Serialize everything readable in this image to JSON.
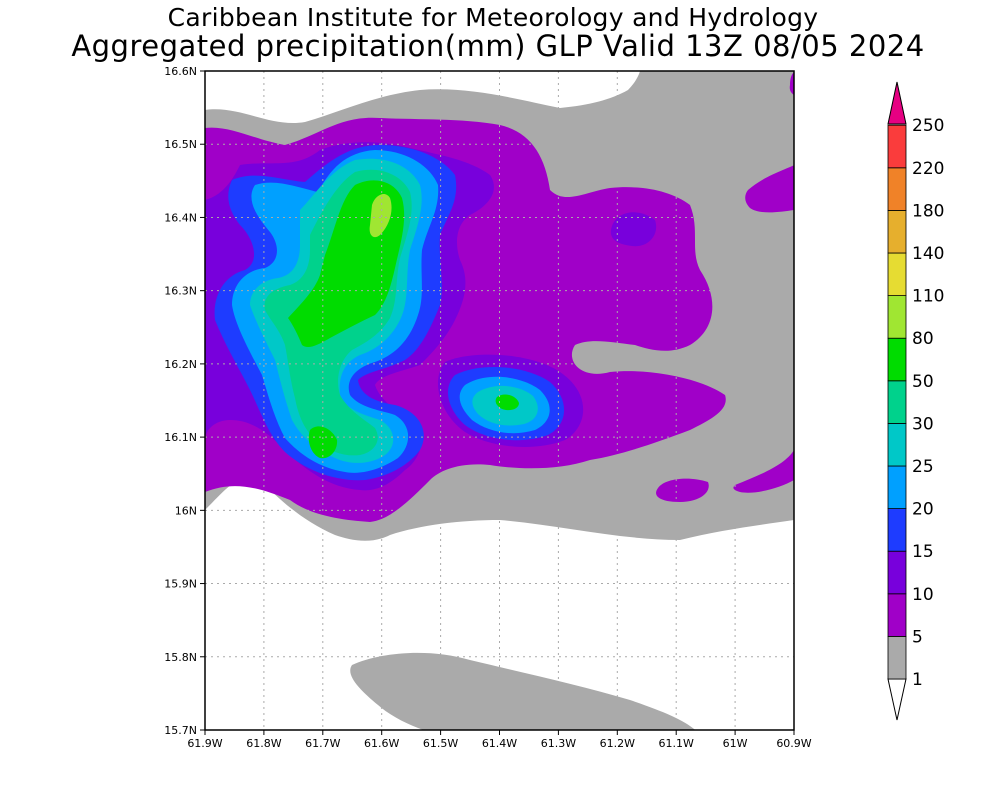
{
  "title": {
    "line1": "Caribbean Institute for Meteorology and Hydrology",
    "line2": "Aggregated precipitation(mm) GLP Valid 13Z 08/05 2024"
  },
  "map": {
    "lon_range": [
      -61.9,
      -60.9
    ],
    "lat_range": [
      15.7,
      16.6
    ],
    "grid": true,
    "x_ticks": [
      "61.9W",
      "61.8W",
      "61.7W",
      "61.6W",
      "61.5W",
      "61.4W",
      "61.3W",
      "61.2W",
      "61.1W",
      "61W",
      "60.9W"
    ],
    "y_ticks": [
      "15.7N",
      "15.8N",
      "15.9N",
      "16N",
      "16.1N",
      "16.2N",
      "16.3N",
      "16.4N",
      "16.5N",
      "16.6N"
    ]
  },
  "legend": {
    "labels": [
      "1",
      "5",
      "10",
      "15",
      "20",
      "25",
      "30",
      "50",
      "80",
      "110",
      "140",
      "180",
      "220",
      "250"
    ],
    "colors": [
      "#aaaaaa",
      "#a000c8",
      "#7800dc",
      "#1e3cff",
      "#00a0ff",
      "#00c8c8",
      "#00d28c",
      "#00dc00",
      "#a0e632",
      "#e6dc32",
      "#e6af2d",
      "#f08228",
      "#fa3c3c",
      "#e60082"
    ],
    "top_arrow_color": "#e60082",
    "bottom_arrow_color": "#ffffff"
  }
}
